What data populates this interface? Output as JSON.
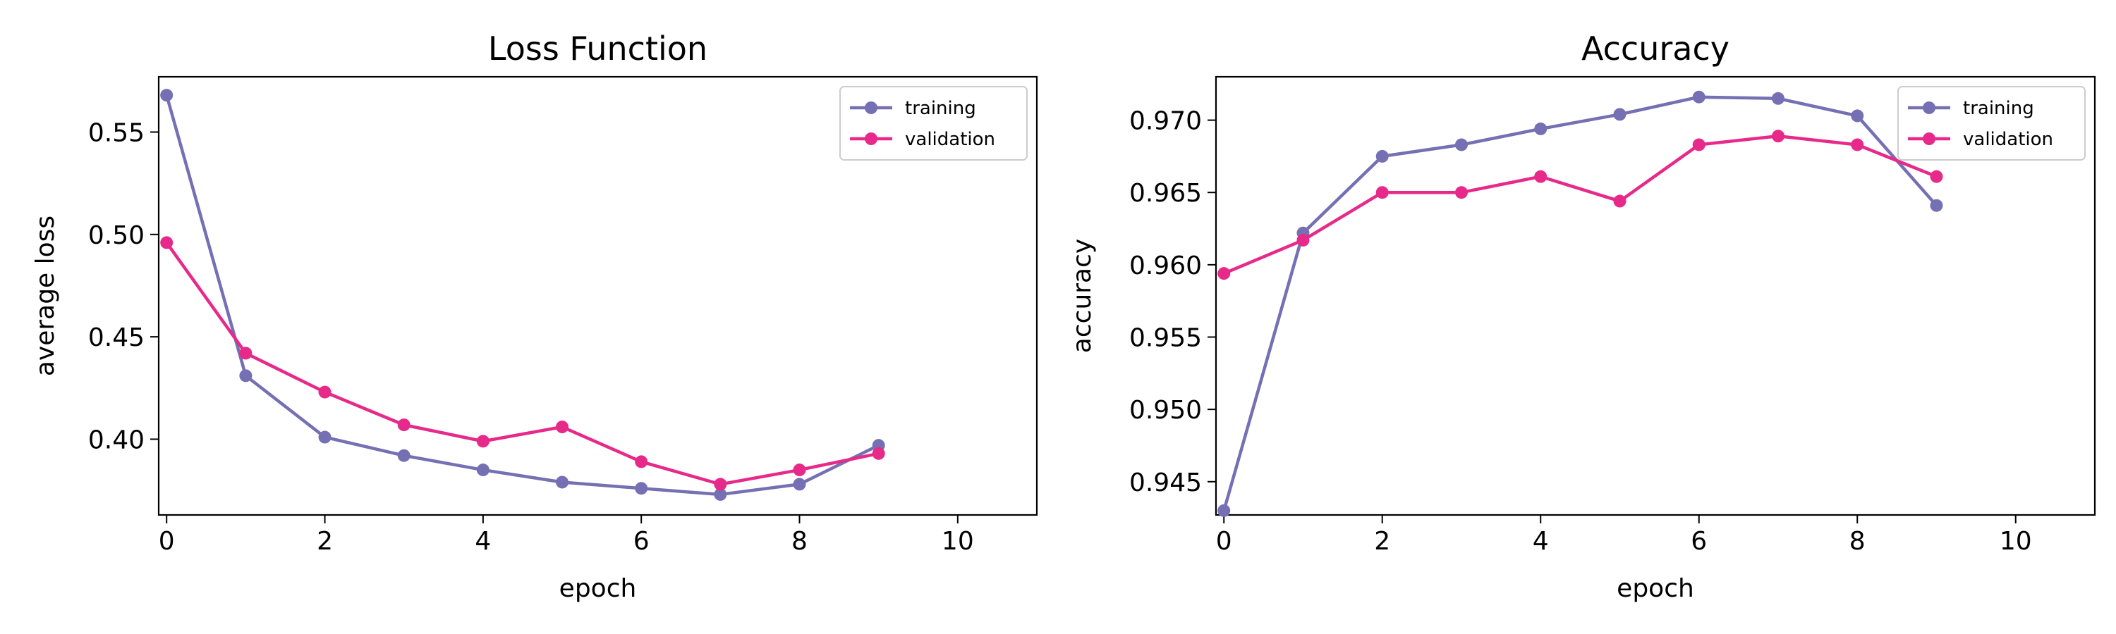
{
  "chart_data": [
    {
      "type": "line",
      "title": "Loss Function",
      "xlabel": "epoch",
      "ylabel": "average loss",
      "xlim": [
        -0.1,
        11
      ],
      "ylim": [
        0.363,
        0.577
      ],
      "xticks": [
        0,
        2,
        4,
        6,
        8,
        10
      ],
      "xtick_labels": [
        "0",
        "2",
        "4",
        "6",
        "8",
        "10"
      ],
      "yticks": [
        0.4,
        0.45,
        0.5,
        0.55
      ],
      "ytick_labels": [
        "0.40",
        "0.45",
        "0.50",
        "0.55"
      ],
      "x": [
        0,
        1,
        2,
        3,
        4,
        5,
        6,
        7,
        8,
        9
      ],
      "series": [
        {
          "name": "training",
          "color": "#7570b3",
          "values": [
            0.568,
            0.431,
            0.401,
            0.392,
            0.385,
            0.379,
            0.376,
            0.373,
            0.378,
            0.397
          ]
        },
        {
          "name": "validation",
          "color": "#e7298a",
          "values": [
            0.496,
            0.442,
            0.423,
            0.407,
            0.399,
            0.406,
            0.389,
            0.378,
            0.385,
            0.393
          ]
        }
      ],
      "legend": "top-right",
      "grid": false
    },
    {
      "type": "line",
      "title": "Accuracy",
      "xlabel": "epoch",
      "ylabel": "accuracy",
      "xlim": [
        -0.1,
        11
      ],
      "ylim": [
        0.9427,
        0.973
      ],
      "xticks": [
        0,
        2,
        4,
        6,
        8,
        10
      ],
      "xtick_labels": [
        "0",
        "2",
        "4",
        "6",
        "8",
        "10"
      ],
      "yticks": [
        0.945,
        0.95,
        0.955,
        0.96,
        0.965,
        0.97
      ],
      "ytick_labels": [
        "0.945",
        "0.950",
        "0.955",
        "0.960",
        "0.965",
        "0.970"
      ],
      "x": [
        0,
        1,
        2,
        3,
        4,
        5,
        6,
        7,
        8,
        9
      ],
      "series": [
        {
          "name": "training",
          "color": "#7570b3",
          "values": [
            0.943,
            0.9622,
            0.9675,
            0.9683,
            0.9694,
            0.9704,
            0.9716,
            0.9715,
            0.9703,
            0.9641
          ]
        },
        {
          "name": "validation",
          "color": "#e7298a",
          "values": [
            0.9594,
            0.9617,
            0.965,
            0.965,
            0.9661,
            0.9644,
            0.9683,
            0.9689,
            0.9683,
            0.9661
          ]
        }
      ],
      "legend": "top-right",
      "grid": false
    }
  ]
}
